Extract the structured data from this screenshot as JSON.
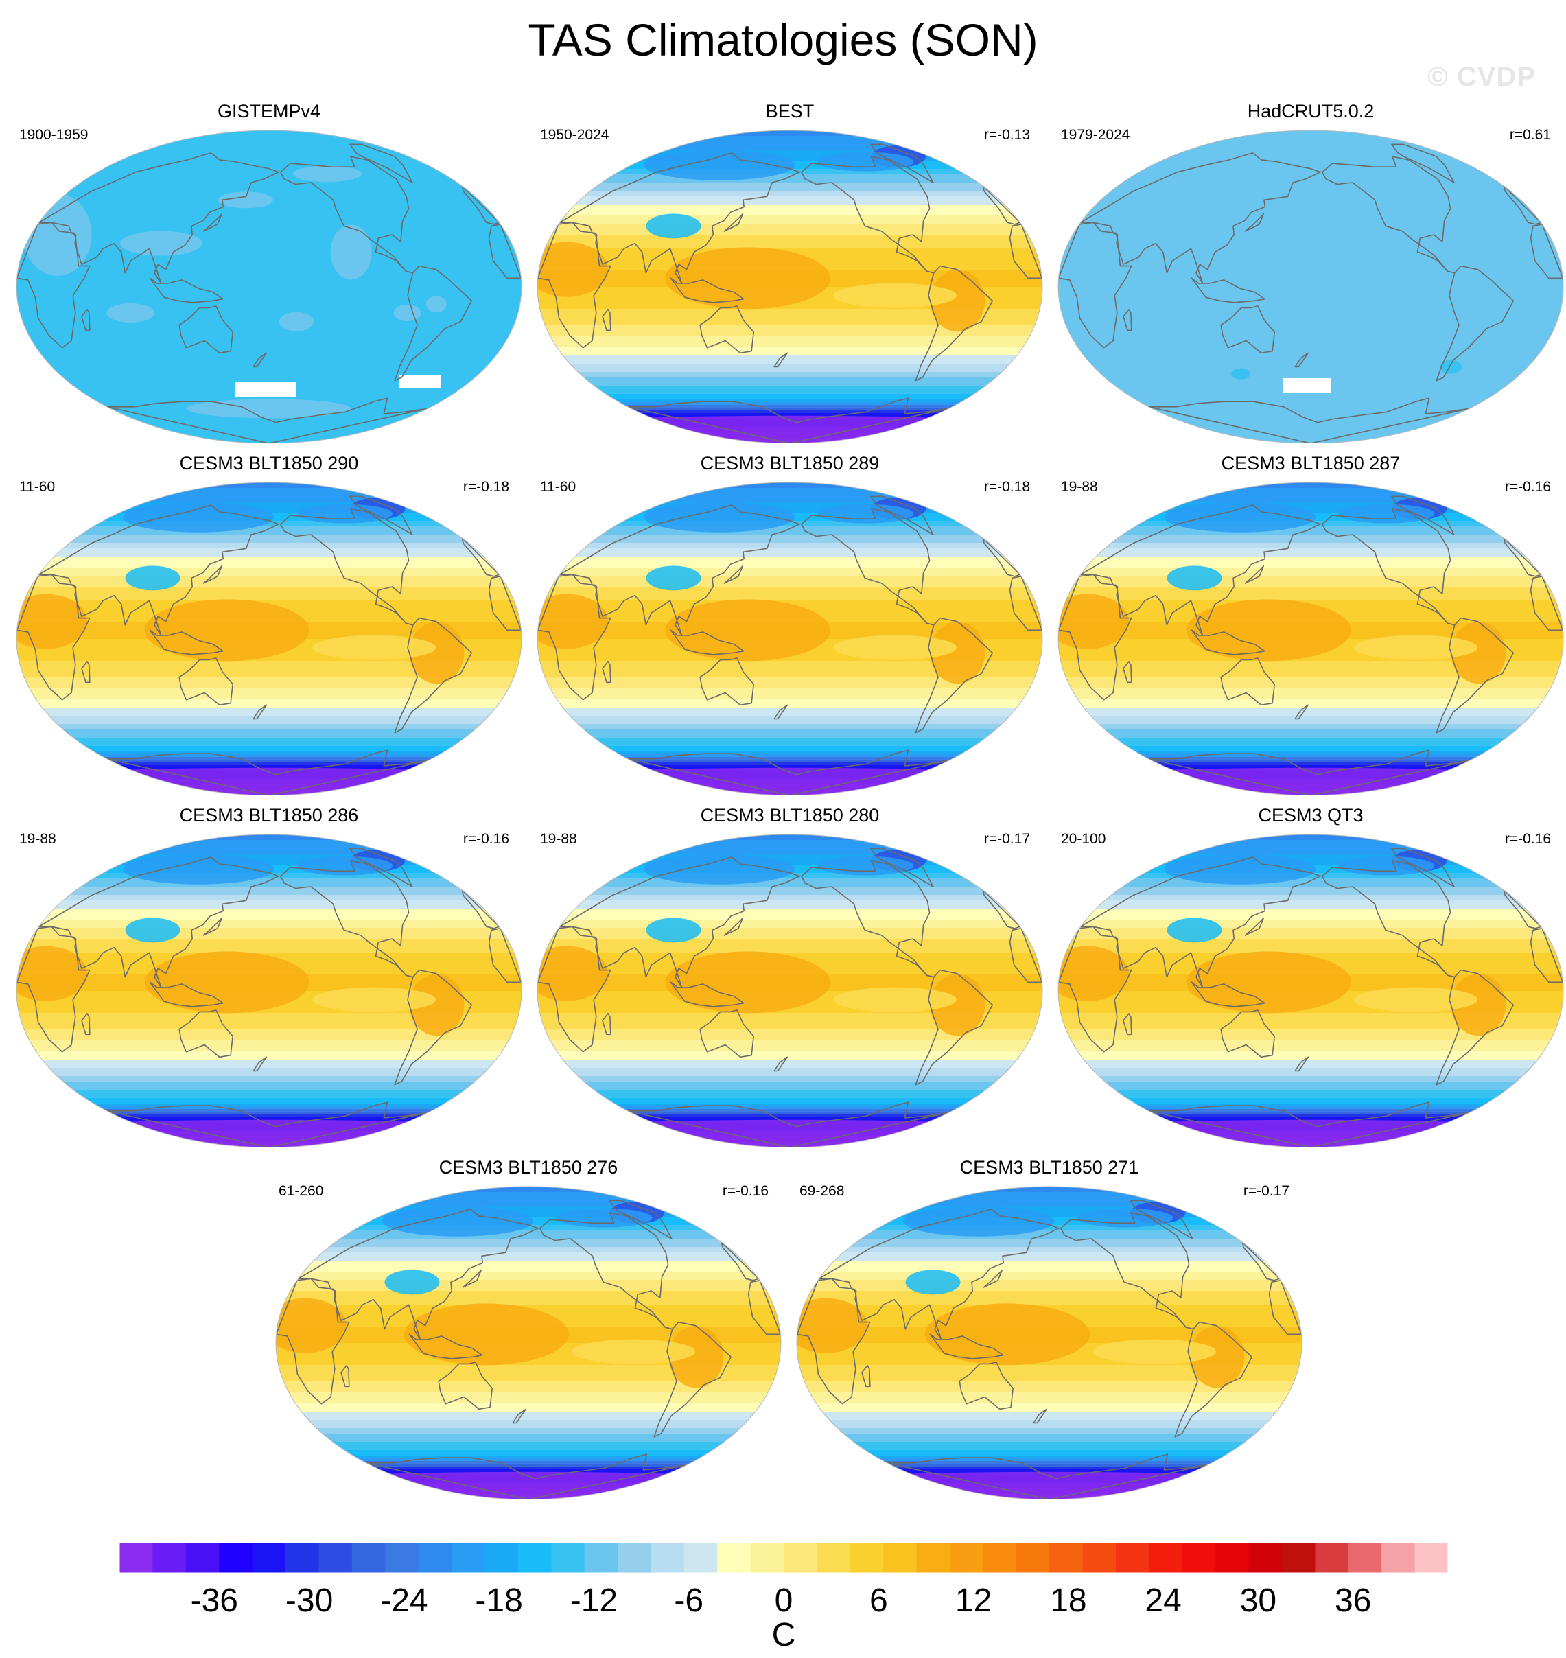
{
  "title": "TAS Climatologies (SON)",
  "watermark": "© CVDP",
  "panels": [
    {
      "title": "GISTEMPv4",
      "period": "1900-1959",
      "corr": "",
      "style": "obs-nearzero"
    },
    {
      "title": "BEST",
      "period": "1950-2024",
      "corr": "r=-0.13",
      "style": "full"
    },
    {
      "title": "HadCRUT5.0.2",
      "period": "1979-2024",
      "corr": "r=0.61",
      "style": "obs-flat"
    },
    {
      "title": "CESM3 BLT1850 290",
      "period": "11-60",
      "corr": "r=-0.18",
      "style": "full"
    },
    {
      "title": "CESM3 BLT1850 289",
      "period": "11-60",
      "corr": "r=-0.18",
      "style": "full"
    },
    {
      "title": "CESM3 BLT1850 287",
      "period": "19-88",
      "corr": "r=-0.16",
      "style": "full"
    },
    {
      "title": "CESM3 BLT1850 286",
      "period": "19-88",
      "corr": "r=-0.16",
      "style": "full"
    },
    {
      "title": "CESM3 BLT1850 280",
      "period": "19-88",
      "corr": "r=-0.17",
      "style": "full"
    },
    {
      "title": "CESM3 QT3",
      "period": "20-100",
      "corr": "r=-0.16",
      "style": "full"
    },
    {
      "title": "CESM3 BLT1850 276",
      "period": "61-260",
      "corr": "r=-0.16",
      "style": "full"
    },
    {
      "title": "CESM3 BLT1850 271",
      "period": "69-268",
      "corr": "r=-0.17",
      "style": "full"
    }
  ],
  "chart_data": {
    "type": "heatmap",
    "title": "TAS Climatologies (SON)",
    "projection": "Robinson (Pacific-centered)",
    "colorbar": {
      "label": "C",
      "min": -42,
      "max": 42,
      "step": 3,
      "tick_labels": [
        "-36",
        "-30",
        "-24",
        "-18",
        "-12",
        "-6",
        "0",
        "6",
        "12",
        "18",
        "24",
        "30",
        "36"
      ],
      "tick_values": [
        -36,
        -30,
        -24,
        -18,
        -12,
        -6,
        0,
        6,
        12,
        18,
        24,
        30,
        36
      ],
      "colors": [
        "#8a2cf0",
        "#6a1cf5",
        "#4a10f5",
        "#1f00ff",
        "#1a14f5",
        "#2234e8",
        "#2c4ee4",
        "#3466e0",
        "#3a7ae4",
        "#2f8af0",
        "#2a9cf5",
        "#1aaaf5",
        "#18bcf8",
        "#38c2f2",
        "#6ac6ee",
        "#94d0ee",
        "#b8dcf0",
        "#cce6f2",
        "#fefeb8",
        "#fcf29a",
        "#fce87a",
        "#fbdc50",
        "#fad02e",
        "#f9c21e",
        "#f8ae12",
        "#f89e10",
        "#f88a0c",
        "#f7780a",
        "#f76210",
        "#f64c12",
        "#f53414",
        "#f41e0c",
        "#f20c0a",
        "#e4040a",
        "#d2020a",
        "#c0100e",
        "#d83c3c",
        "#e86a6e",
        "#f4a2a6",
        "#fcc2c4"
      ]
    },
    "series": [
      {
        "name": "GISTEMPv4",
        "period": "1900-1959",
        "r": null
      },
      {
        "name": "BEST",
        "period": "1950-2024",
        "r": -0.13
      },
      {
        "name": "HadCRUT5.0.2",
        "period": "1979-2024",
        "r": 0.61
      },
      {
        "name": "CESM3 BLT1850 290",
        "period": "11-60",
        "r": -0.18
      },
      {
        "name": "CESM3 BLT1850 289",
        "period": "11-60",
        "r": -0.18
      },
      {
        "name": "CESM3 BLT1850 287",
        "period": "19-88",
        "r": -0.16
      },
      {
        "name": "CESM3 BLT1850 286",
        "period": "19-88",
        "r": -0.16
      },
      {
        "name": "CESM3 BLT1850 280",
        "period": "19-88",
        "r": -0.17
      },
      {
        "name": "CESM3 QT3",
        "period": "20-100",
        "r": -0.16
      },
      {
        "name": "CESM3 BLT1850 276",
        "period": "61-260",
        "r": -0.16
      },
      {
        "name": "CESM3 BLT1850 271",
        "period": "69-268",
        "r": -0.17
      }
    ]
  }
}
